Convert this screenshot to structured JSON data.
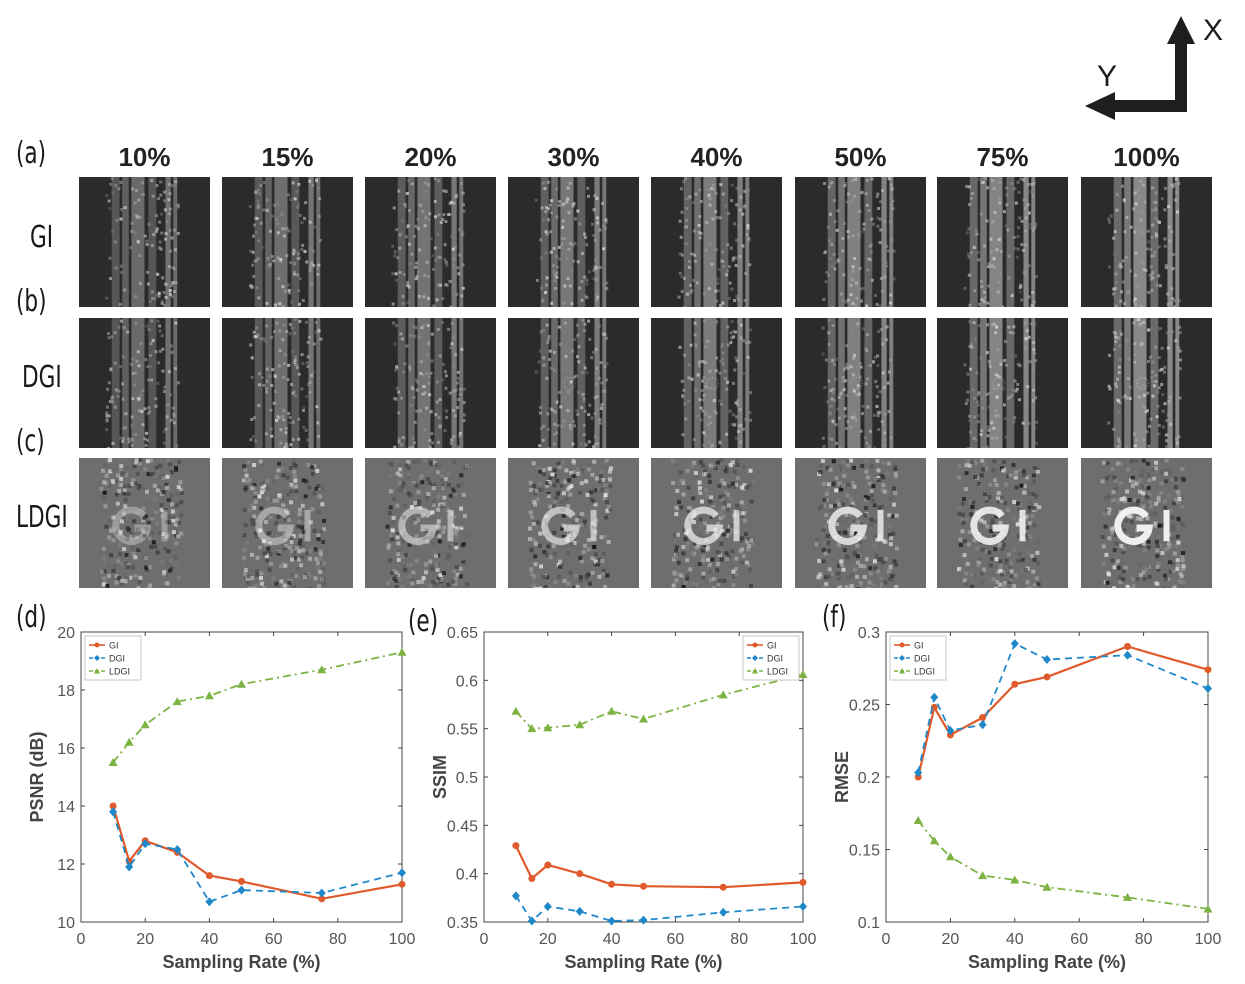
{
  "axes_indicator": {
    "x_label": "X",
    "y_label": "Y"
  },
  "image_grid": {
    "column_headers": [
      "10%",
      "15%",
      "20%",
      "30%",
      "40%",
      "50%",
      "75%",
      "100%"
    ],
    "row_panel_labels": [
      "(a)",
      "(b)",
      "(c)"
    ],
    "row_names": [
      "GI",
      "DGI",
      "LDGI"
    ]
  },
  "chart_panel_labels": [
    "(d)",
    "(e)",
    "(f)"
  ],
  "chart_data": [
    {
      "type": "line",
      "xlabel": "Sampling Rate (%)",
      "ylabel": "PSNR (dB)",
      "xlim": [
        0,
        100
      ],
      "ylim": [
        10,
        20
      ],
      "xticks": [
        0,
        20,
        40,
        60,
        80,
        100
      ],
      "yticks": [
        10,
        12,
        14,
        16,
        18,
        20
      ],
      "legend_position": "top-left",
      "series": [
        {
          "name": "GI",
          "color": "#e05a2b",
          "marker": "circle",
          "dash": "solid",
          "x": [
            10,
            15,
            20,
            30,
            40,
            50,
            75,
            100
          ],
          "y": [
            14.0,
            12.1,
            12.8,
            12.4,
            11.6,
            11.4,
            10.8,
            11.3
          ]
        },
        {
          "name": "DGI",
          "color": "#1f88c9",
          "marker": "diamond",
          "dash": "dashed",
          "x": [
            10,
            15,
            20,
            30,
            40,
            50,
            75,
            100
          ],
          "y": [
            13.8,
            11.9,
            12.7,
            12.5,
            10.7,
            11.1,
            11.0,
            11.7
          ]
        },
        {
          "name": "LDGI",
          "color": "#7cb342",
          "marker": "triangle",
          "dash": "dashdot",
          "x": [
            10,
            15,
            20,
            30,
            40,
            50,
            75,
            100
          ],
          "y": [
            15.5,
            16.2,
            16.8,
            17.6,
            17.8,
            18.2,
            18.7,
            19.3
          ]
        }
      ]
    },
    {
      "type": "line",
      "xlabel": "Sampling Rate (%)",
      "ylabel": "SSIM",
      "xlim": [
        0,
        100
      ],
      "ylim": [
        0.35,
        0.65
      ],
      "xticks": [
        0,
        20,
        40,
        60,
        80,
        100
      ],
      "yticks": [
        0.35,
        0.4,
        0.45,
        0.5,
        0.55,
        0.6,
        0.65
      ],
      "legend_position": "top-right",
      "series": [
        {
          "name": "GI",
          "color": "#e05a2b",
          "marker": "circle",
          "dash": "solid",
          "x": [
            10,
            15,
            20,
            30,
            40,
            50,
            75,
            100
          ],
          "y": [
            0.429,
            0.395,
            0.409,
            0.4,
            0.389,
            0.387,
            0.386,
            0.391
          ]
        },
        {
          "name": "DGI",
          "color": "#1f88c9",
          "marker": "diamond",
          "dash": "dashed",
          "x": [
            10,
            15,
            20,
            30,
            40,
            50,
            75,
            100
          ],
          "y": [
            0.377,
            0.351,
            0.366,
            0.361,
            0.351,
            0.352,
            0.36,
            0.366
          ]
        },
        {
          "name": "LDGI",
          "color": "#7cb342",
          "marker": "triangle",
          "dash": "dashdot",
          "x": [
            10,
            15,
            20,
            30,
            40,
            50,
            75,
            100
          ],
          "y": [
            0.568,
            0.55,
            0.551,
            0.554,
            0.568,
            0.56,
            0.585,
            0.606
          ]
        }
      ]
    },
    {
      "type": "line",
      "xlabel": "Sampling Rate (%)",
      "ylabel": "RMSE",
      "xlim": [
        0,
        100
      ],
      "ylim": [
        0.1,
        0.3
      ],
      "xticks": [
        0,
        20,
        40,
        60,
        80,
        100
      ],
      "yticks": [
        0.1,
        0.15,
        0.2,
        0.25,
        0.3
      ],
      "legend_position": "top-left",
      "series": [
        {
          "name": "GI",
          "color": "#e05a2b",
          "marker": "circle",
          "dash": "solid",
          "x": [
            10,
            15,
            20,
            30,
            40,
            50,
            75,
            100
          ],
          "y": [
            0.2,
            0.248,
            0.229,
            0.241,
            0.264,
            0.269,
            0.29,
            0.274
          ]
        },
        {
          "name": "DGI",
          "color": "#1f88c9",
          "marker": "diamond",
          "dash": "dashed",
          "x": [
            10,
            15,
            20,
            30,
            40,
            50,
            75,
            100
          ],
          "y": [
            0.203,
            0.255,
            0.232,
            0.236,
            0.292,
            0.281,
            0.284,
            0.261
          ]
        },
        {
          "name": "LDGI",
          "color": "#7cb342",
          "marker": "triangle",
          "dash": "dashdot",
          "x": [
            10,
            15,
            20,
            30,
            40,
            50,
            75,
            100
          ],
          "y": [
            0.17,
            0.156,
            0.145,
            0.132,
            0.129,
            0.124,
            0.117,
            0.109
          ]
        }
      ]
    }
  ]
}
